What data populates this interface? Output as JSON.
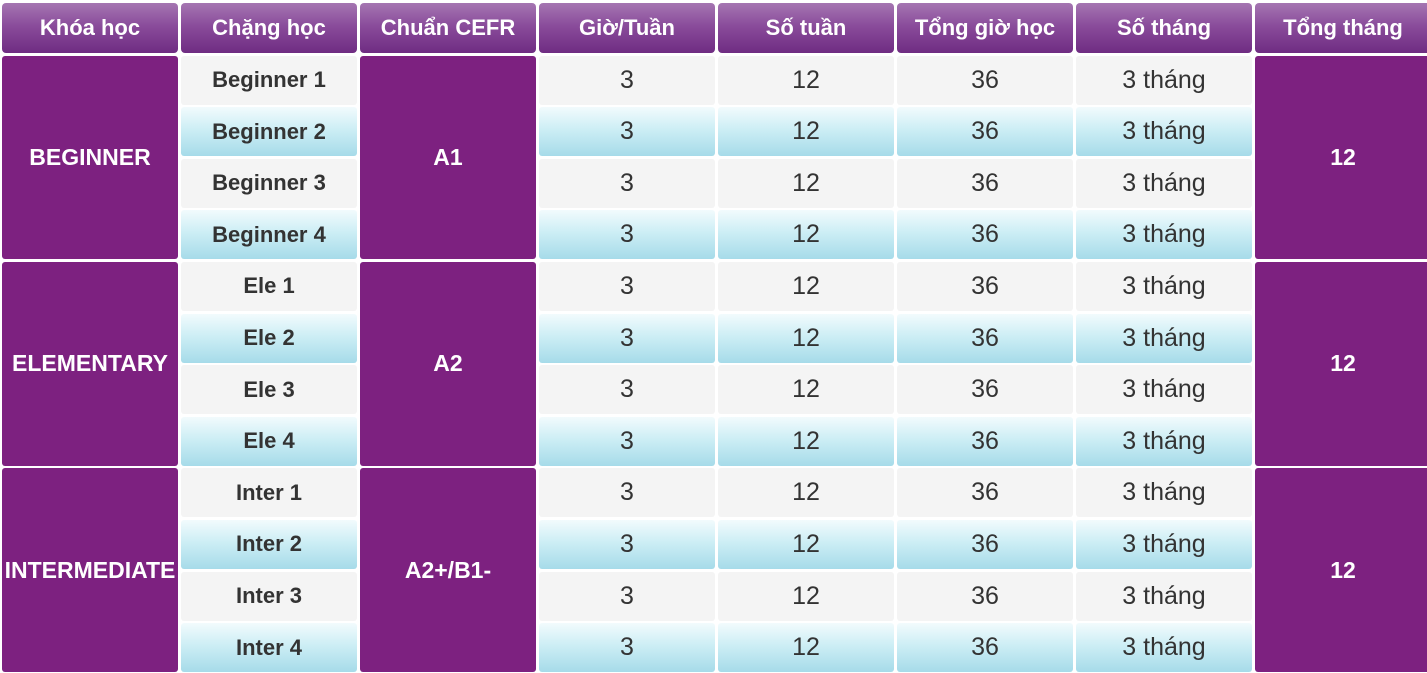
{
  "headers": [
    "Khóa học",
    "Chặng học",
    "Chuẩn CEFR",
    "Giờ/Tuần",
    "Số tuần",
    "Tổng giờ học",
    "Số tháng",
    "Tổng tháng"
  ],
  "courses": [
    {
      "name": "BEGINNER",
      "cefr": "A1",
      "total_months": "12",
      "stages": [
        {
          "name": "Beginner 1",
          "hours_per_week": "3",
          "weeks": "12",
          "total_hours": "36",
          "months": "3 tháng"
        },
        {
          "name": "Beginner 2",
          "hours_per_week": "3",
          "weeks": "12",
          "total_hours": "36",
          "months": "3 tháng"
        },
        {
          "name": "Beginner 3",
          "hours_per_week": "3",
          "weeks": "12",
          "total_hours": "36",
          "months": "3 tháng"
        },
        {
          "name": "Beginner 4",
          "hours_per_week": "3",
          "weeks": "12",
          "total_hours": "36",
          "months": "3 tháng"
        }
      ]
    },
    {
      "name": "ELEMENTARY",
      "cefr": "A2",
      "total_months": "12",
      "stages": [
        {
          "name": "Ele 1",
          "hours_per_week": "3",
          "weeks": "12",
          "total_hours": "36",
          "months": "3 tháng"
        },
        {
          "name": "Ele 2",
          "hours_per_week": "3",
          "weeks": "12",
          "total_hours": "36",
          "months": "3 tháng"
        },
        {
          "name": "Ele 3",
          "hours_per_week": "3",
          "weeks": "12",
          "total_hours": "36",
          "months": "3 tháng"
        },
        {
          "name": "Ele 4",
          "hours_per_week": "3",
          "weeks": "12",
          "total_hours": "36",
          "months": "3 tháng"
        }
      ]
    },
    {
      "name": "INTERMEDIATE",
      "cefr": "A2+/B1-",
      "total_months": "12",
      "stages": [
        {
          "name": "Inter 1",
          "hours_per_week": "3",
          "weeks": "12",
          "total_hours": "36",
          "months": "3 tháng"
        },
        {
          "name": "Inter 2",
          "hours_per_week": "3",
          "weeks": "12",
          "total_hours": "36",
          "months": "3 tháng"
        },
        {
          "name": "Inter 3",
          "hours_per_week": "3",
          "weeks": "12",
          "total_hours": "36",
          "months": "3 tháng"
        },
        {
          "name": "Inter 4",
          "hours_per_week": "3",
          "weeks": "12",
          "total_hours": "36",
          "months": "3 tháng"
        }
      ]
    }
  ]
}
